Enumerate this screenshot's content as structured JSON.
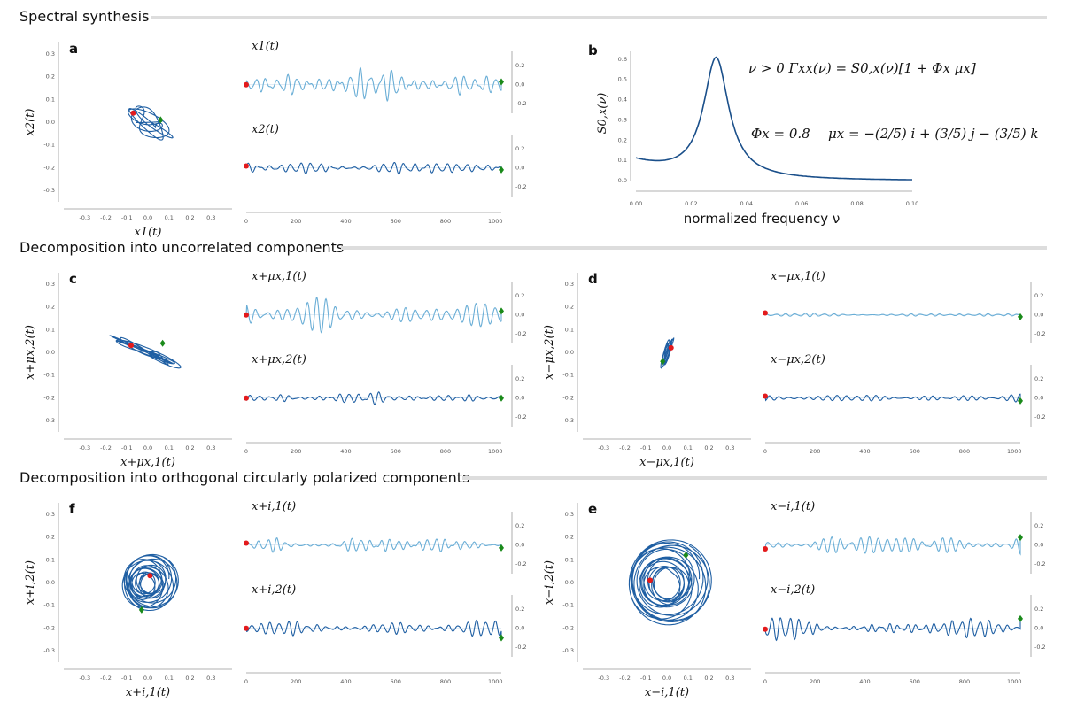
{
  "sections": [
    "Spectral synthesis",
    "Decomposition into uncorrelated components",
    "Decomposition into orthogonal circularly polarized components"
  ],
  "panel_labels": {
    "a": "a",
    "b": "b",
    "c": "c",
    "d": "d",
    "f": "f",
    "e": "e"
  },
  "equations": {
    "line1": "ν > 0  Γxx(ν) = S0,x(ν)[1 + Φx μx]",
    "line2a": "Φx = 0.8",
    "line2b": "μx = −(2/5) i + (3/5) j − (3/5) k"
  },
  "colors": {
    "dark": "#1f5fa3",
    "light": "#6aaed6",
    "start": "#e31a1c",
    "end": "#1a8a1a",
    "spine": "#999999",
    "title_rule": "#dddddd"
  },
  "chart_data": [
    {
      "id": "a",
      "type": "line",
      "kind": "phase",
      "xlabel": "x1(t)",
      "ylabel": "x2(t)",
      "xticks": [
        "-0.3",
        "-0.2",
        "-0.1",
        "0.0",
        "0.1",
        "0.2",
        "0.3"
      ],
      "yticks": [
        "0.3",
        "0.2",
        "0.1",
        "0.0",
        "-0.1",
        "-0.2",
        "-0.3"
      ],
      "xlim": [
        -0.4,
        0.4
      ],
      "ylim": [
        -0.35,
        0.35
      ],
      "shape": "elongated",
      "axis": [
        1.0,
        -0.35
      ],
      "spread": [
        0.15,
        0.05
      ],
      "start": [
        -0.07,
        0.04
      ],
      "end": [
        0.06,
        0.01
      ]
    },
    {
      "id": "a-ts",
      "type": "line",
      "kind": "timeseries",
      "series": [
        {
          "name": "x1(t)",
          "amp": 0.19,
          "start": 0.0,
          "end": 0.03,
          "color": "light"
        },
        {
          "name": "x2(t)",
          "amp": 0.09,
          "start": 0.02,
          "end": -0.02,
          "color": "dark"
        }
      ],
      "xticks": [
        "0",
        "200",
        "400",
        "600",
        "800",
        "1000"
      ],
      "xlim": [
        0,
        1024
      ],
      "yticks": [
        "0.2",
        "0.0",
        "-0.2"
      ],
      "ylim": [
        -0.3,
        0.35
      ]
    },
    {
      "id": "b",
      "type": "line",
      "kind": "spectrum",
      "xlabel": "normalized frequency ν",
      "ylabel": "S0,x(ν)",
      "xticks": [
        "0.00",
        "0.02",
        "0.04",
        "0.06",
        "0.08",
        "0.10"
      ],
      "xlim": [
        0,
        0.1
      ],
      "yticks": [
        "0.6",
        "0.5",
        "0.4",
        "0.3",
        "0.2",
        "0.1",
        "0.0"
      ],
      "ylim": [
        0,
        0.63
      ],
      "peak_freq": 0.029,
      "peak_value": 0.61,
      "baseline": 0.095
    },
    {
      "id": "c",
      "type": "line",
      "kind": "phase",
      "xlabel": "x+μx,1(t)",
      "ylabel": "x+μx,2(t)",
      "xticks": [
        "-0.3",
        "-0.2",
        "-0.1",
        "0.0",
        "0.1",
        "0.2",
        "0.3"
      ],
      "yticks": [
        "0.3",
        "0.2",
        "0.1",
        "0.0",
        "-0.1",
        "-0.2",
        "-0.3"
      ],
      "xlim": [
        -0.4,
        0.4
      ],
      "ylim": [
        -0.35,
        0.35
      ],
      "shape": "elongated",
      "axis": [
        1.0,
        -0.4
      ],
      "spread": [
        0.22,
        0.015
      ],
      "start": [
        -0.08,
        0.03
      ],
      "end": [
        0.07,
        0.04
      ]
    },
    {
      "id": "c-ts",
      "type": "line",
      "kind": "timeseries",
      "series": [
        {
          "name": "x+μx,1(t)",
          "amp": 0.19,
          "start": 0.0,
          "end": 0.04,
          "color": "light"
        },
        {
          "name": "x+μx,2(t)",
          "amp": 0.07,
          "start": 0.0,
          "end": 0.0,
          "color": "dark"
        }
      ],
      "xticks": [
        "0",
        "200",
        "400",
        "600",
        "800",
        "1000"
      ],
      "xlim": [
        0,
        1024
      ],
      "yticks": [
        "0.2",
        "0.0",
        "-0.2"
      ],
      "ylim": [
        -0.3,
        0.35
      ]
    },
    {
      "id": "d",
      "type": "line",
      "kind": "phase",
      "xlabel": "x−μx,1(t)",
      "ylabel": "x−μx,2(t)",
      "xticks": [
        "-0.3",
        "-0.2",
        "-0.1",
        "0.0",
        "0.1",
        "0.2",
        "0.3"
      ],
      "yticks": [
        "0.3",
        "0.2",
        "0.1",
        "0.0",
        "-0.1",
        "-0.2",
        "-0.3"
      ],
      "xlim": [
        -0.4,
        0.4
      ],
      "ylim": [
        -0.35,
        0.35
      ],
      "shape": "elongated",
      "axis": [
        0.35,
        1.0
      ],
      "spread": [
        0.085,
        0.012
      ],
      "start": [
        0.02,
        0.02
      ],
      "end": [
        -0.02,
        -0.04
      ]
    },
    {
      "id": "d-ts",
      "type": "line",
      "kind": "timeseries",
      "series": [
        {
          "name": "x−μx,1(t)",
          "amp": 0.025,
          "start": 0.02,
          "end": -0.02,
          "color": "light"
        },
        {
          "name": "x−μx,2(t)",
          "amp": 0.05,
          "start": 0.02,
          "end": -0.03,
          "color": "dark"
        }
      ],
      "xticks": [
        "0",
        "200",
        "400",
        "600",
        "800",
        "1000"
      ],
      "xlim": [
        0,
        1024
      ],
      "yticks": [
        "0.2",
        "0.0",
        "-0.2"
      ],
      "ylim": [
        -0.3,
        0.35
      ]
    },
    {
      "id": "f",
      "type": "line",
      "kind": "phase",
      "xlabel": "x+i,1(t)",
      "ylabel": "x+i,2(t)",
      "xticks": [
        "-0.3",
        "-0.2",
        "-0.1",
        "0.0",
        "0.1",
        "0.2",
        "0.3"
      ],
      "yticks": [
        "0.3",
        "0.2",
        "0.1",
        "0.0",
        "-0.1",
        "-0.2",
        "-0.3"
      ],
      "xlim": [
        -0.4,
        0.4
      ],
      "ylim": [
        -0.35,
        0.35
      ],
      "shape": "circular",
      "radius": 0.13,
      "start": [
        0.01,
        0.03
      ],
      "end": [
        -0.03,
        -0.12
      ]
    },
    {
      "id": "f-ts",
      "type": "line",
      "kind": "timeseries",
      "series": [
        {
          "name": "x+i,1(t)",
          "amp": 0.1,
          "start": 0.02,
          "end": -0.03,
          "color": "light"
        },
        {
          "name": "x+i,2(t)",
          "amp": 0.1,
          "start": 0.0,
          "end": -0.1,
          "color": "dark"
        }
      ],
      "xticks": [
        "0",
        "200",
        "400",
        "600",
        "800",
        "1000"
      ],
      "xlim": [
        0,
        1024
      ],
      "yticks": [
        "0.2",
        "0.0",
        "-0.2"
      ],
      "ylim": [
        -0.3,
        0.35
      ]
    },
    {
      "id": "e",
      "type": "line",
      "kind": "phase",
      "xlabel": "x−i,1(t)",
      "ylabel": "x−i,2(t)",
      "xticks": [
        "-0.3",
        "-0.2",
        "-0.1",
        "0.0",
        "0.1",
        "0.2",
        "0.3"
      ],
      "yticks": [
        "0.3",
        "0.2",
        "0.1",
        "0.0",
        "-0.1",
        "-0.2",
        "-0.3"
      ],
      "xlim": [
        -0.4,
        0.4
      ],
      "ylim": [
        -0.35,
        0.35
      ],
      "shape": "circular",
      "radius": 0.2,
      "start": [
        -0.08,
        0.01
      ],
      "end": [
        0.09,
        0.12
      ]
    },
    {
      "id": "e-ts",
      "type": "line",
      "kind": "timeseries",
      "series": [
        {
          "name": "x−i,1(t)",
          "amp": 0.15,
          "start": -0.04,
          "end": 0.08,
          "color": "light"
        },
        {
          "name": "x−i,2(t)",
          "amp": 0.14,
          "start": -0.01,
          "end": 0.1,
          "color": "dark"
        }
      ],
      "xticks": [
        "0",
        "200",
        "400",
        "600",
        "800",
        "1000"
      ],
      "xlim": [
        0,
        1024
      ],
      "yticks": [
        "0.2",
        "0.0",
        "-0.2"
      ],
      "ylim": [
        -0.3,
        0.35
      ]
    }
  ]
}
